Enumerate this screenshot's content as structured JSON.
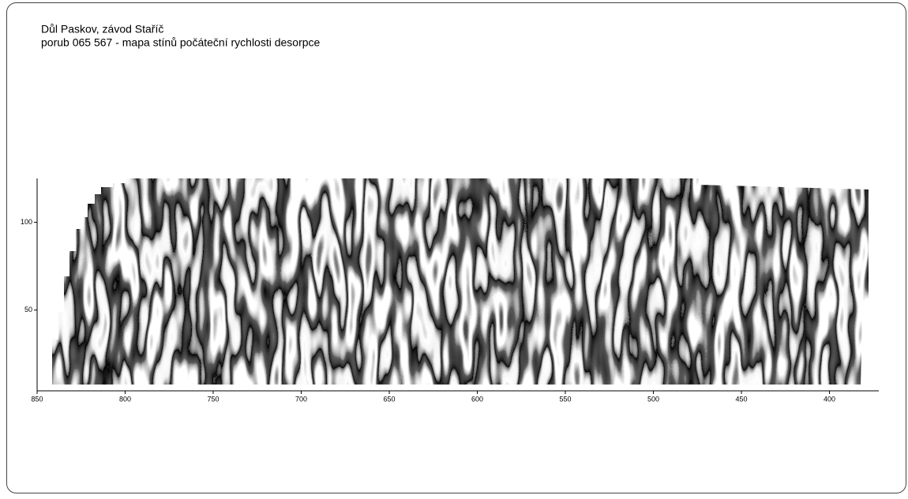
{
  "chart_data": {
    "type": "shaded-map",
    "title": "Důl Paskov, závod Staříč",
    "subtitle": "porub 065 567 - mapa stínů počáteční rychlosti desorpce",
    "xlim": [
      850,
      372
    ],
    "xticks": [
      850,
      800,
      750,
      700,
      650,
      600,
      550,
      500,
      450,
      400
    ],
    "ylim": [
      4,
      125
    ],
    "yticks": [
      50,
      100
    ]
  }
}
